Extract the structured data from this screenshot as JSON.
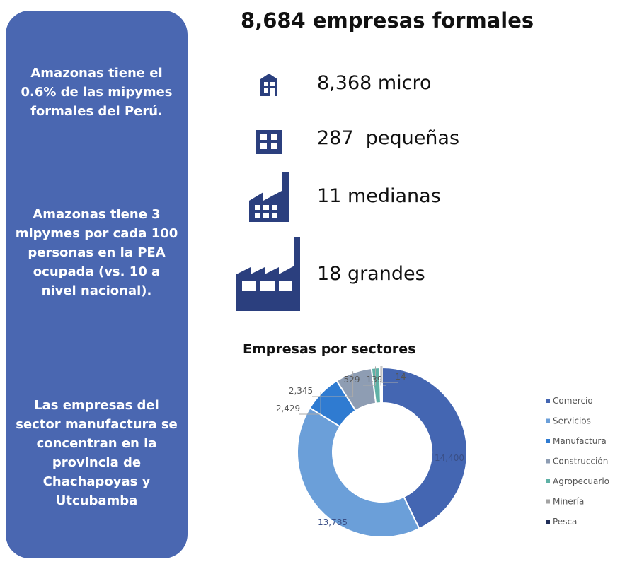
{
  "panel": {
    "paragraphs": [
      "Amazonas tiene el 0.6% de las mipymes formales del Perú.",
      "Amazonas tiene 3 mipymes por cada 100 personas en la PEA ocupada (vs. 10 a nivel nacional).",
      "Las empresas del sector manufactura se concentran en la provincia de Chachapoyas y Utcubamba"
    ]
  },
  "header": {
    "title": "8,684 empresas formales"
  },
  "items": [
    "8,368 micro",
    "287  pequeñas",
    "11 medianas",
    "18 grandes"
  ],
  "chart_data": {
    "type": "donut",
    "title": "Empresas por sectores",
    "categories": [
      "Comercio",
      "Servicios",
      "Manufactura",
      "Construcción",
      "Agropecuario",
      "Minería",
      "Pesca"
    ],
    "values": [
      14400,
      13785,
      2429,
      2345,
      529,
      139,
      14
    ],
    "value_labels": [
      "14,400",
      "13,785",
      "2,429",
      "2,345",
      "529",
      "139",
      "14"
    ],
    "colors": [
      "#4466b2",
      "#6b9fd9",
      "#2f7bd1",
      "#8e9db3",
      "#5fb1a6",
      "#a3a3a3",
      "#1f2d58"
    ],
    "legend": "right"
  }
}
